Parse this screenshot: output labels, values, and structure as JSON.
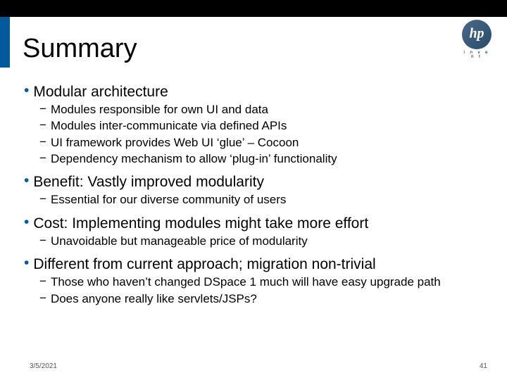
{
  "colors": {
    "accent": "#005a9c",
    "topbar": "#000000",
    "background": "#ffffff"
  },
  "logo": {
    "text": "i n v e n t"
  },
  "title": "Summary",
  "bullets": [
    {
      "text": "Modular architecture",
      "sub": [
        "Modules responsible for own UI and data",
        "Modules inter-communicate via defined APIs",
        "UI framework provides Web UI ‘glue’ – Cocoon",
        "Dependency mechanism to allow ‘plug-in’ functionality"
      ]
    },
    {
      "text": "Benefit: Vastly improved modularity",
      "sub": [
        "Essential for our diverse community of users"
      ]
    },
    {
      "text": "Cost: Implementing modules might take more effort",
      "sub": [
        "Unavoidable but manageable price of modularity"
      ]
    },
    {
      "text": "Different from current approach; migration non-trivial",
      "sub": [
        "Those who haven’t changed DSpace 1 much will have easy upgrade path",
        "Does anyone really like servlets/JSPs?"
      ]
    }
  ],
  "footer": {
    "date": "3/5/2021",
    "page": "41"
  }
}
